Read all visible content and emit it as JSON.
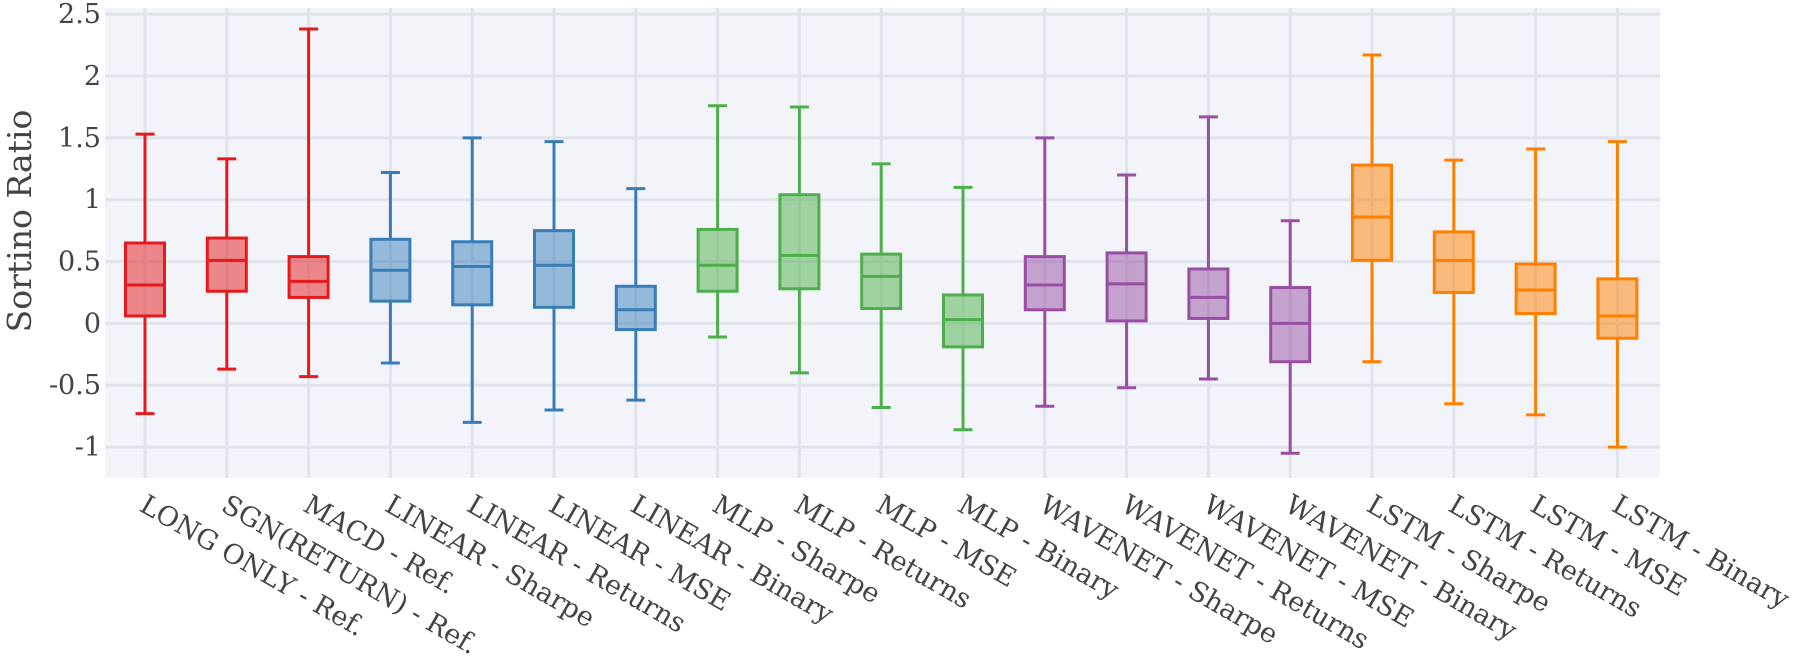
{
  "chart_data": {
    "type": "box",
    "title": "",
    "xlabel": "",
    "ylabel": "Sortino Ratio",
    "ylim": [
      -1.25,
      2.55
    ],
    "yticks": [
      -1,
      -0.5,
      0,
      0.5,
      1,
      1.5,
      2,
      2.5
    ],
    "ytick_labels": [
      "-1",
      "-0.5",
      "0",
      "0.5",
      "1",
      "1.5",
      "2",
      "2.5"
    ],
    "grid": true,
    "legend": "none",
    "boxes": [
      {
        "label": "LONG ONLY - Ref.",
        "color": "#e41a1c",
        "min": -0.73,
        "q1": 0.06,
        "median": 0.31,
        "q3": 0.65,
        "max": 1.53
      },
      {
        "label": "SGN(RETURN) - Ref.",
        "color": "#e41a1c",
        "min": -0.37,
        "q1": 0.26,
        "median": 0.51,
        "q3": 0.69,
        "max": 1.33
      },
      {
        "label": "MACD - Ref.",
        "color": "#e41a1c",
        "min": -0.43,
        "q1": 0.21,
        "median": 0.34,
        "q3": 0.54,
        "max": 2.38
      },
      {
        "label": "LINEAR - Sharpe",
        "color": "#377eb8",
        "min": -0.32,
        "q1": 0.18,
        "median": 0.43,
        "q3": 0.68,
        "max": 1.22
      },
      {
        "label": "LINEAR - Returns",
        "color": "#377eb8",
        "min": -0.8,
        "q1": 0.15,
        "median": 0.46,
        "q3": 0.66,
        "max": 1.5
      },
      {
        "label": "LINEAR - MSE",
        "color": "#377eb8",
        "min": -0.7,
        "q1": 0.13,
        "median": 0.47,
        "q3": 0.75,
        "max": 1.47
      },
      {
        "label": "LINEAR - Binary",
        "color": "#377eb8",
        "min": -0.62,
        "q1": -0.05,
        "median": 0.11,
        "q3": 0.3,
        "max": 1.09
      },
      {
        "label": "MLP - Sharpe",
        "color": "#4daf4a",
        "min": -0.11,
        "q1": 0.26,
        "median": 0.47,
        "q3": 0.76,
        "max": 1.76
      },
      {
        "label": "MLP - Returns",
        "color": "#4daf4a",
        "min": -0.4,
        "q1": 0.28,
        "median": 0.55,
        "q3": 1.04,
        "max": 1.75
      },
      {
        "label": "MLP - MSE",
        "color": "#4daf4a",
        "min": -0.68,
        "q1": 0.12,
        "median": 0.38,
        "q3": 0.56,
        "max": 1.29
      },
      {
        "label": "MLP - Binary",
        "color": "#4daf4a",
        "min": -0.86,
        "q1": -0.19,
        "median": 0.03,
        "q3": 0.23,
        "max": 1.1
      },
      {
        "label": "WAVENET - Sharpe",
        "color": "#984ea3",
        "min": -0.67,
        "q1": 0.11,
        "median": 0.31,
        "q3": 0.54,
        "max": 1.5
      },
      {
        "label": "WAVENET - Returns",
        "color": "#984ea3",
        "min": -0.52,
        "q1": 0.02,
        "median": 0.32,
        "q3": 0.57,
        "max": 1.2
      },
      {
        "label": "WAVENET - MSE",
        "color": "#984ea3",
        "min": -0.45,
        "q1": 0.04,
        "median": 0.21,
        "q3": 0.44,
        "max": 1.67
      },
      {
        "label": "WAVENET - Binary",
        "color": "#984ea3",
        "min": -1.05,
        "q1": -0.31,
        "median": 0.0,
        "q3": 0.29,
        "max": 0.83
      },
      {
        "label": "LSTM - Sharpe",
        "color": "#ff7f00",
        "min": -0.31,
        "q1": 0.51,
        "median": 0.86,
        "q3": 1.28,
        "max": 2.17
      },
      {
        "label": "LSTM - Returns",
        "color": "#ff7f00",
        "min": -0.65,
        "q1": 0.25,
        "median": 0.51,
        "q3": 0.74,
        "max": 1.32
      },
      {
        "label": "LSTM - MSE",
        "color": "#ff7f00",
        "min": -0.74,
        "q1": 0.08,
        "median": 0.27,
        "q3": 0.48,
        "max": 1.41
      },
      {
        "label": "LSTM - Binary",
        "color": "#ff7f00",
        "min": -1.0,
        "q1": -0.12,
        "median": 0.06,
        "q3": 0.36,
        "max": 1.47
      }
    ]
  },
  "style": {
    "plot_background": "#f3f4f9",
    "grid_color": "#e0e3ec",
    "text_color": "#444444"
  }
}
